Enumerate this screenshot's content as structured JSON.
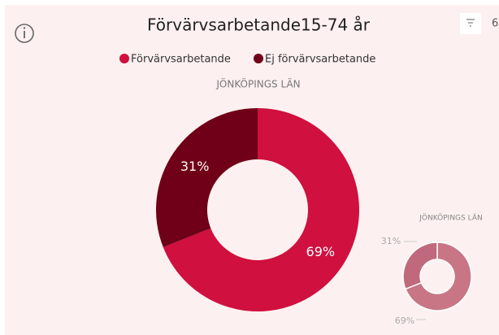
{
  "chart_data": [
    {
      "type": "donut",
      "title": "Förvärvsarbetande15-74 år",
      "subtitle": "JÖNKÖPINGS LÄN",
      "toolbar_text": "6",
      "categories": [
        "Förvärvsarbetande",
        "Ej förvärvsarbetande"
      ],
      "values": [
        69,
        31
      ],
      "value_labels": [
        "69%",
        "31%"
      ],
      "colors": [
        "#d0103f",
        "#700018"
      ],
      "legend": "top"
    },
    {
      "type": "donut",
      "subtitle": "JÖNKÖPINGS LÄN",
      "values": [
        69,
        31
      ],
      "value_labels": [
        "69%",
        "31%"
      ],
      "colors": [
        "#c87586",
        "#c0697c"
      ]
    }
  ]
}
